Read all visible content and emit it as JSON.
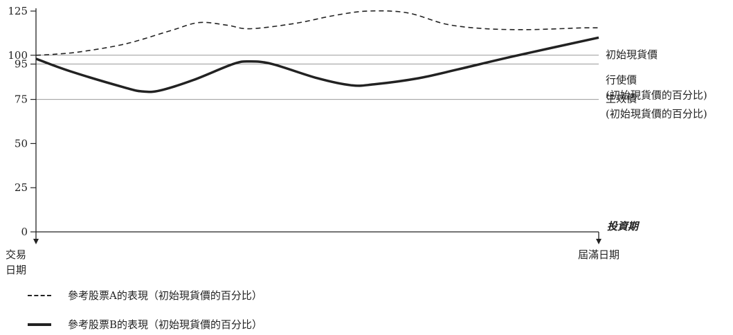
{
  "chart_data": {
    "type": "line",
    "ylim": [
      0,
      125
    ],
    "yticks": [
      0,
      25,
      50,
      75,
      95,
      100,
      125
    ],
    "xlim": [
      0,
      1
    ],
    "x_start_label": [
      "交易",
      "日期"
    ],
    "x_end_label": "屆滿日期",
    "x_axis_title": "投資期",
    "reference_lines": [
      {
        "value": 100,
        "label_lines": [
          "初始現貨價"
        ]
      },
      {
        "value": 95,
        "label_lines": [
          "行使價",
          "(初始現貨價的百分比)"
        ]
      },
      {
        "value": 75,
        "label_lines": [
          "生效價",
          "(初始現貨價的百分比)"
        ]
      }
    ],
    "series": [
      {
        "name": "參考股票A的表現（初始現貨價的百分比）",
        "style": "dashed",
        "x": [
          0,
          0.03,
          0.08,
          0.16,
          0.24,
          0.29,
          0.34,
          0.38,
          0.46,
          0.53,
          0.59,
          0.66,
          0.73,
          0.8,
          0.87,
          0.93,
          0.97,
          1.0
        ],
        "y": [
          100,
          100.5,
          102,
          106.5,
          114,
          118.5,
          117,
          115,
          118,
          122.5,
          125,
          124,
          117.5,
          115,
          114.5,
          115,
          115.5,
          115.5
        ]
      },
      {
        "name": "參考股票B的表現（初始現貨價的百分比）",
        "style": "solid",
        "x": [
          0,
          0.06,
          0.16,
          0.19,
          0.22,
          0.28,
          0.35,
          0.38,
          0.42,
          0.5,
          0.56,
          0.6,
          0.68,
          0.75,
          0.85,
          1.0
        ],
        "y": [
          98,
          91,
          81.5,
          79.5,
          80,
          86,
          95,
          96.5,
          95,
          87,
          83,
          83.5,
          87,
          92,
          99.5,
          110
        ]
      }
    ],
    "colors": {
      "line": "#222222",
      "reference": "#999999",
      "axis": "#222222"
    }
  }
}
